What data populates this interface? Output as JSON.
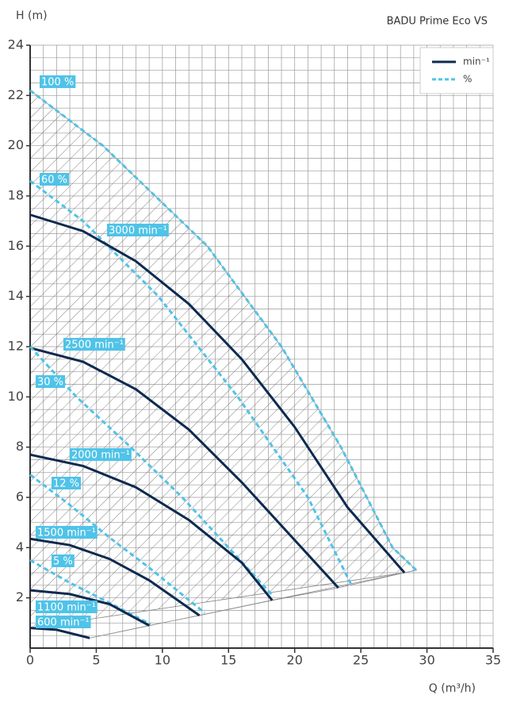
{
  "chart_data": {
    "type": "line",
    "title": "BADU Prime Eco VS",
    "y_label": "H (m)",
    "x_label": "Q (m³/h)",
    "xlim": [
      0,
      35
    ],
    "xticks": [
      0,
      5,
      10,
      15,
      20,
      25,
      30,
      35
    ],
    "ylim": [
      0,
      24
    ],
    "yticks": [
      2,
      4,
      6,
      8,
      10,
      12,
      14,
      16,
      18,
      20,
      22,
      24
    ],
    "grid": true,
    "minor_grid": {
      "x": 1,
      "y": 0.5
    },
    "legend_position": "upper right",
    "legend": [
      {
        "name": "min⁻¹",
        "color": "#0d2a4f",
        "dashed": false
      },
      {
        "name": "%",
        "color": "#4fc3e8",
        "dashed": true
      }
    ],
    "series": [
      {
        "name": "100 %",
        "color": "#4fc3e8",
        "dashed": true,
        "x": [
          0,
          5.5,
          13.4,
          19,
          23.5,
          27.4,
          29.2
        ],
        "values": [
          22.2,
          20,
          16,
          12,
          8,
          4,
          3.1
        ]
      },
      {
        "name": "60 %",
        "color": "#4fc3e8",
        "dashed": true,
        "x": [
          0,
          4,
          9.7,
          15.7,
          21,
          24.3
        ],
        "values": [
          18.6,
          17,
          14,
          10,
          6,
          2.5
        ]
      },
      {
        "name": "3000 min⁻¹",
        "color": "#0d2a4f",
        "dashed": false,
        "x": [
          0,
          4,
          8,
          12,
          16,
          20,
          24,
          28.3
        ],
        "values": [
          17.25,
          16.6,
          15.4,
          13.7,
          11.5,
          8.8,
          5.6,
          3.0
        ]
      },
      {
        "name": "2500 min⁻¹",
        "color": "#0d2a4f",
        "dashed": false,
        "x": [
          0,
          4,
          8,
          12,
          16,
          20,
          23.3
        ],
        "values": [
          11.95,
          11.4,
          10.3,
          8.7,
          6.6,
          4.3,
          2.4
        ]
      },
      {
        "name": "30 %",
        "color": "#4fc3e8",
        "dashed": true,
        "x": [
          0,
          3.5,
          7.6,
          11.5,
          15,
          18.4
        ],
        "values": [
          12,
          10,
          8,
          6,
          4,
          2.05
        ]
      },
      {
        "name": "2000 min⁻¹",
        "color": "#0d2a4f",
        "dashed": false,
        "x": [
          0,
          4,
          8,
          12,
          16,
          18.3
        ],
        "values": [
          7.7,
          7.25,
          6.4,
          5.1,
          3.4,
          1.9
        ]
      },
      {
        "name": "12 %",
        "color": "#4fc3e8",
        "dashed": true,
        "x": [
          0,
          3,
          6,
          9,
          13.2
        ],
        "values": [
          6.9,
          5.7,
          4.4,
          3.2,
          1.4
        ]
      },
      {
        "name": "1500 min⁻¹",
        "color": "#0d2a4f",
        "dashed": false,
        "x": [
          0,
          3,
          6,
          9,
          12.8
        ],
        "values": [
          4.35,
          4.1,
          3.55,
          2.7,
          1.3
        ]
      },
      {
        "name": "5 %",
        "color": "#4fc3e8",
        "dashed": true,
        "x": [
          0,
          3,
          6,
          9.1
        ],
        "values": [
          3.5,
          2.6,
          1.8,
          0.95
        ]
      },
      {
        "name": "1100 min⁻¹",
        "color": "#0d2a4f",
        "dashed": false,
        "x": [
          0,
          3,
          6,
          9
        ],
        "values": [
          2.3,
          2.15,
          1.75,
          0.9
        ]
      },
      {
        "name": "600 min⁻¹",
        "color": "#0d2a4f",
        "dashed": false,
        "x": [
          0,
          2,
          4.5
        ],
        "values": [
          0.8,
          0.73,
          0.4
        ]
      }
    ]
  }
}
